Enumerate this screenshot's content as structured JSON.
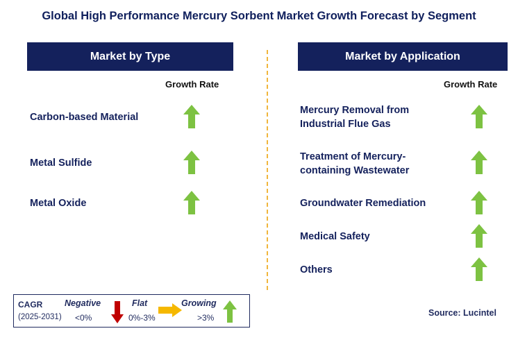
{
  "title": "Global High Performance Mercury Sorbent Market Growth Forecast by Segment",
  "left_panel": {
    "header": "Market by Type",
    "growth_rate_label": "Growth Rate",
    "items": [
      {
        "label_lines": [
          "Carbon-based Material",
          ""
        ],
        "trend": "growing"
      },
      {
        "label_lines": [
          "Metal Sulfide",
          ""
        ],
        "trend": "growing"
      },
      {
        "label_lines": [
          "Metal Oxide",
          ""
        ],
        "trend": "growing"
      }
    ]
  },
  "right_panel": {
    "header": "Market by Application",
    "growth_rate_label": "Growth Rate",
    "items": [
      {
        "label_lines": [
          "Mercury Removal from",
          "Industrial Flue Gas"
        ],
        "trend": "growing"
      },
      {
        "label_lines": [
          "Treatment of Mercury-",
          "containing Wastewater"
        ],
        "trend": "growing"
      },
      {
        "label_lines": [
          "Groundwater Remediation",
          ""
        ],
        "trend": "growing"
      },
      {
        "label_lines": [
          "Medical Safety",
          ""
        ],
        "trend": "growing"
      },
      {
        "label_lines": [
          "Others",
          ""
        ],
        "trend": "growing"
      }
    ]
  },
  "legend": {
    "cagr_label": "CAGR",
    "period": "(2025-2031)",
    "negative": {
      "label": "Negative",
      "range": "<0%"
    },
    "flat": {
      "label": "Flat",
      "range": "0%-3%"
    },
    "growing": {
      "label": "Growing",
      "range": ">3%"
    }
  },
  "source": "Source: Lucintel",
  "colors": {
    "header_bg": "#14215c",
    "title_text": "#0f1f5c",
    "growing_arrow": "#7dc242",
    "negative_arrow": "#c00000",
    "flat_arrow": "#f5b800",
    "divider": "#f0b63c"
  }
}
